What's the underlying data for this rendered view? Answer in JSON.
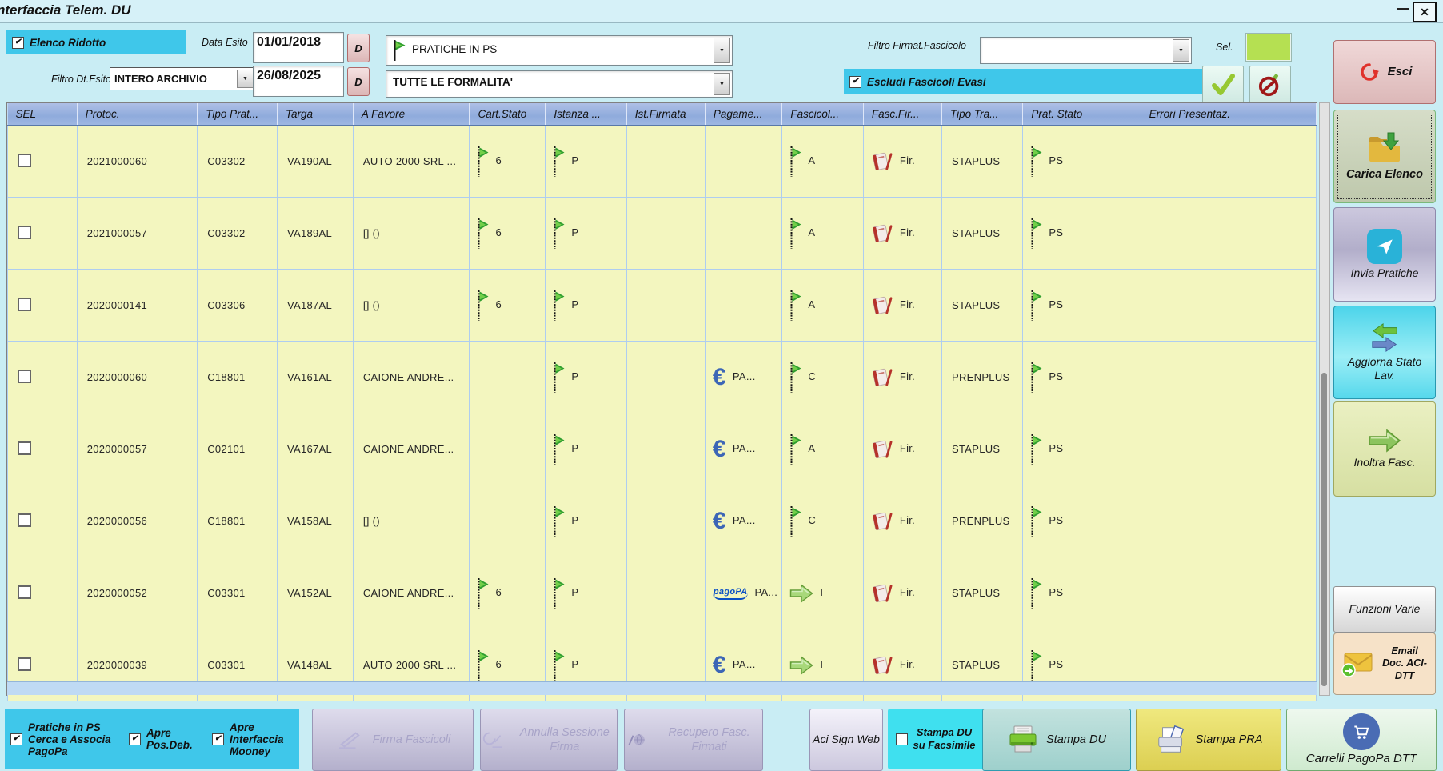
{
  "window": {
    "title": "nterfaccia Telem. DU",
    "close_glyph": "✕"
  },
  "filters": {
    "elenco_ridotto_label": "Elenco Ridotto",
    "data_esito_label": "Data Esito",
    "date_from": "01/01/2018",
    "date_to": "26/08/2025",
    "d_button_label": "D",
    "filtro_dt_esito_label": "Filtro Dt.Esito",
    "filtro_dt_esito_value": "INTERO ARCHIVIO",
    "pratiche_dropdown_value": "PRATICHE IN PS",
    "formalita_dropdown_value": "TUTTE LE FORMALITA'",
    "filtro_firmat_label": "Filtro Firmat.Fascicolo",
    "filtro_firmat_value": "",
    "sel_label": "Sel.",
    "escludi_label": "Escludi Fascicoli Evasi"
  },
  "table": {
    "columns": [
      "SEL",
      "Protoc.",
      "Tipo Prat...",
      "Targa",
      "A Favore",
      "Cart.Stato",
      "Istanza ...",
      "Ist.Firmata",
      "Pagame...",
      "Fascicol...",
      "Fasc.Fir...",
      "Tipo Tra...",
      "Prat. Stato",
      "Errori Presentaz."
    ],
    "rows": [
      {
        "sel": false,
        "protoc": "2021000060",
        "tipo_prat": "C03302",
        "targa": "VA190AL",
        "a_favore": "AUTO 2000 SRL ...",
        "cart_stato": {
          "icon": "flag",
          "text": "6"
        },
        "istanza": {
          "icon": "flag",
          "text": "P"
        },
        "ist_firmata": "",
        "pagamento": {
          "icon": "",
          "text": ""
        },
        "fascicolo": {
          "icon": "flag",
          "text": "A"
        },
        "fasc_fir": {
          "icon": "book",
          "text": "Fir."
        },
        "tipo_tra": "STAPLUS",
        "prat_stato": {
          "icon": "flag",
          "text": "PS"
        },
        "errori": ""
      },
      {
        "sel": false,
        "protoc": "2021000057",
        "tipo_prat": "C03302",
        "targa": "VA189AL",
        "a_favore": "[] ()",
        "cart_stato": {
          "icon": "flag",
          "text": "6"
        },
        "istanza": {
          "icon": "flag",
          "text": "P"
        },
        "ist_firmata": "",
        "pagamento": {
          "icon": "",
          "text": ""
        },
        "fascicolo": {
          "icon": "flag",
          "text": "A"
        },
        "fasc_fir": {
          "icon": "book",
          "text": "Fir."
        },
        "tipo_tra": "STAPLUS",
        "prat_stato": {
          "icon": "flag",
          "text": "PS"
        },
        "errori": ""
      },
      {
        "sel": false,
        "protoc": "2020000141",
        "tipo_prat": "C03306",
        "targa": "VA187AL",
        "a_favore": "[] ()",
        "cart_stato": {
          "icon": "flag",
          "text": "6"
        },
        "istanza": {
          "icon": "flag",
          "text": "P"
        },
        "ist_firmata": "",
        "pagamento": {
          "icon": "",
          "text": ""
        },
        "fascicolo": {
          "icon": "flag",
          "text": "A"
        },
        "fasc_fir": {
          "icon": "book",
          "text": "Fir."
        },
        "tipo_tra": "STAPLUS",
        "prat_stato": {
          "icon": "flag",
          "text": "PS"
        },
        "errori": ""
      },
      {
        "sel": false,
        "protoc": "2020000060",
        "tipo_prat": "C18801",
        "targa": "VA161AL",
        "a_favore": "CAIONE ANDRE...",
        "cart_stato": {
          "icon": "",
          "text": ""
        },
        "istanza": {
          "icon": "flag",
          "text": "P"
        },
        "ist_firmata": "",
        "pagamento": {
          "icon": "euro",
          "text": "PA..."
        },
        "fascicolo": {
          "icon": "flag",
          "text": "C"
        },
        "fasc_fir": {
          "icon": "book",
          "text": "Fir."
        },
        "tipo_tra": "PRENPLUS",
        "prat_stato": {
          "icon": "flag",
          "text": "PS"
        },
        "errori": ""
      },
      {
        "sel": false,
        "protoc": "2020000057",
        "tipo_prat": "C02101",
        "targa": "VA167AL",
        "a_favore": "CAIONE ANDRE...",
        "cart_stato": {
          "icon": "",
          "text": ""
        },
        "istanza": {
          "icon": "flag",
          "text": "P"
        },
        "ist_firmata": "",
        "pagamento": {
          "icon": "euro",
          "text": "PA..."
        },
        "fascicolo": {
          "icon": "flag",
          "text": "A"
        },
        "fasc_fir": {
          "icon": "book",
          "text": "Fir."
        },
        "tipo_tra": "STAPLUS",
        "prat_stato": {
          "icon": "flag",
          "text": "PS"
        },
        "errori": ""
      },
      {
        "sel": false,
        "protoc": "2020000056",
        "tipo_prat": "C18801",
        "targa": "VA158AL",
        "a_favore": "[] ()",
        "cart_stato": {
          "icon": "",
          "text": ""
        },
        "istanza": {
          "icon": "flag",
          "text": "P"
        },
        "ist_firmata": "",
        "pagamento": {
          "icon": "euro",
          "text": "PA..."
        },
        "fascicolo": {
          "icon": "flag",
          "text": "C"
        },
        "fasc_fir": {
          "icon": "book",
          "text": "Fir."
        },
        "tipo_tra": "PRENPLUS",
        "prat_stato": {
          "icon": "flag",
          "text": "PS"
        },
        "errori": ""
      },
      {
        "sel": false,
        "protoc": "2020000052",
        "tipo_prat": "C03301",
        "targa": "VA152AL",
        "a_favore": "CAIONE ANDRE...",
        "cart_stato": {
          "icon": "flag",
          "text": "6"
        },
        "istanza": {
          "icon": "flag",
          "text": "P"
        },
        "ist_firmata": "",
        "pagamento": {
          "icon": "pagopa",
          "text": "PA..."
        },
        "fascicolo": {
          "icon": "arrow",
          "text": "I"
        },
        "fasc_fir": {
          "icon": "book",
          "text": "Fir."
        },
        "tipo_tra": "STAPLUS",
        "prat_stato": {
          "icon": "flag",
          "text": "PS"
        },
        "errori": ""
      },
      {
        "sel": false,
        "protoc": "2020000039",
        "tipo_prat": "C03301",
        "targa": "VA148AL",
        "a_favore": "AUTO 2000 SRL ...",
        "cart_stato": {
          "icon": "flag",
          "text": "6"
        },
        "istanza": {
          "icon": "flag",
          "text": "P"
        },
        "ist_firmata": "",
        "pagamento": {
          "icon": "euro",
          "text": "PA..."
        },
        "fascicolo": {
          "icon": "arrow",
          "text": "I"
        },
        "fasc_fir": {
          "icon": "book",
          "text": "Fir."
        },
        "tipo_tra": "STAPLUS",
        "prat_stato": {
          "icon": "flag",
          "text": "PS"
        },
        "errori": ""
      }
    ]
  },
  "sidebar": {
    "esci": "Esci",
    "carica": "Carica Elenco",
    "invia": "Invia Pratiche",
    "aggiorna": "Aggiorna Stato Lav.",
    "inoltra": "Inoltra Fasc.",
    "funzioni": "Funzioni Varie",
    "email": "Email Doc. ACI-DTT"
  },
  "bottom": {
    "chk_pratiche": "Pratiche in PS Cerca e Associa PagoPa",
    "chk_posdeb": "Apre Pos.Deb.",
    "chk_mooney": "Apre Interfaccia Mooney",
    "firma": "Firma Fascicoli",
    "annulla": "Annulla Sessione Firma",
    "recupero": "Recupero Fasc. Firmati",
    "acisign": "Aci Sign Web",
    "facsimile": "Stampa DU su Facsimile",
    "stampa_du": "Stampa DU",
    "stampa_pra": "Stampa PRA",
    "carrelli": "Carrelli PagoPa DTT"
  },
  "colors": {
    "panel_cyan": "#3fc7ea",
    "cell_yellow": "#f3f6bf",
    "header_blue": "#9ab4e0",
    "flag_green": "#3fae3f",
    "sel_swatch_green": "#b5e052",
    "euro_blue": "#3c66b6",
    "pagopa_blue": "#0b50c4",
    "esci_red": "#e0312b"
  }
}
